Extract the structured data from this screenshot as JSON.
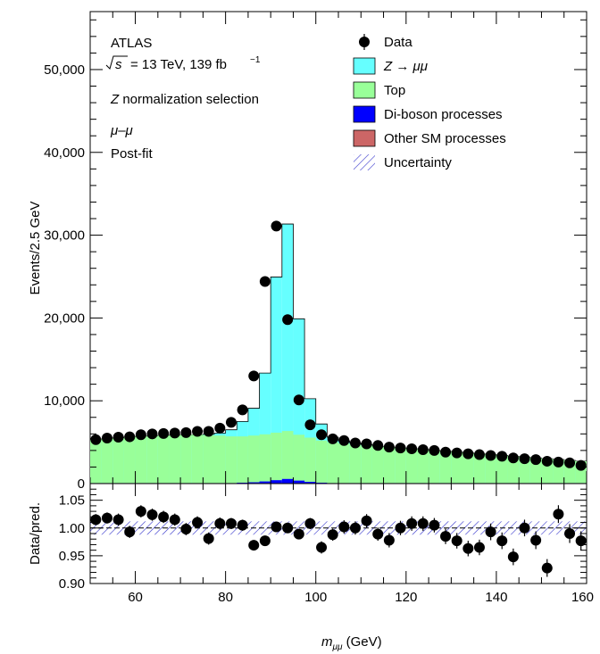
{
  "chart_data": [
    {
      "type": "area",
      "panel": "main",
      "ylabel": "Events/2.5 GeV",
      "xlim": [
        50,
        160
      ],
      "ylim": [
        0,
        57000
      ],
      "yticks": [
        0,
        10000,
        20000,
        30000,
        40000,
        50000
      ],
      "ytick_labels": [
        "0",
        "10,000",
        "20,000",
        "30,000",
        "40,000",
        "50,000"
      ],
      "texts": {
        "experiment": "ATLAS",
        "sqrt_s_label": "= 13 TeV, 139 fb",
        "sqrt_s_sup": "−1",
        "sqrt_symbol": "s",
        "selection_z": "Z",
        "selection_rest": " normalization selection",
        "channel": "μ–μ",
        "fit": "Post-fit"
      },
      "legend": [
        {
          "key": "data",
          "label": "Data",
          "marker": "dot",
          "color": "#000000"
        },
        {
          "key": "z",
          "label": "Z → μμ",
          "marker": "box",
          "color": "#66ffff"
        },
        {
          "key": "top",
          "label": "Top",
          "marker": "box",
          "color": "#99ff99"
        },
        {
          "key": "diboson",
          "label": "Di-boson processes",
          "marker": "box",
          "color": "#0000ff"
        },
        {
          "key": "other",
          "label": "Other SM processes",
          "marker": "box",
          "color": "#cc6666"
        },
        {
          "key": "unc",
          "label": "Uncertainty",
          "marker": "hatch",
          "color": "#3333cc"
        }
      ],
      "bin_edges": [
        50,
        52.5,
        55,
        57.5,
        60,
        62.5,
        65,
        67.5,
        70,
        72.5,
        75,
        77.5,
        80,
        82.5,
        85,
        87.5,
        90,
        92.5,
        95,
        97.5,
        100,
        102.5,
        105,
        107.5,
        110,
        112.5,
        115,
        117.5,
        120,
        122.5,
        125,
        127.5,
        130,
        132.5,
        135,
        137.5,
        140,
        142.5,
        145,
        147.5,
        150,
        152.5,
        155,
        157.5,
        160
      ],
      "series": [
        {
          "name": "Other SM processes",
          "color": "#cc6666",
          "values": [
            60,
            60,
            60,
            60,
            60,
            60,
            60,
            60,
            60,
            60,
            60,
            60,
            60,
            60,
            60,
            60,
            60,
            60,
            60,
            60,
            60,
            60,
            60,
            60,
            60,
            60,
            60,
            60,
            60,
            60,
            60,
            60,
            60,
            60,
            60,
            60,
            60,
            60,
            60,
            60,
            60,
            60,
            60,
            60
          ]
        },
        {
          "name": "Di-boson processes",
          "color": "#0000ff",
          "values": [
            0,
            0,
            0,
            0,
            0,
            0,
            0,
            0,
            0,
            0,
            0,
            0,
            0,
            50,
            100,
            200,
            350,
            500,
            300,
            150,
            50,
            0,
            0,
            0,
            0,
            0,
            0,
            0,
            0,
            0,
            0,
            0,
            0,
            0,
            0,
            0,
            0,
            0,
            0,
            0,
            0,
            0,
            0,
            0
          ]
        },
        {
          "name": "Top",
          "color": "#99ff99",
          "values": [
            5240,
            5340,
            5440,
            5540,
            5640,
            5690,
            5740,
            5790,
            5840,
            5840,
            5790,
            5740,
            5640,
            5590,
            5640,
            5690,
            5740,
            5790,
            5540,
            5340,
            5090,
            4940,
            4790,
            4640,
            4540,
            4440,
            4340,
            4240,
            4140,
            4040,
            3940,
            3840,
            3740,
            3640,
            3540,
            3440,
            3340,
            3240,
            3140,
            3040,
            2940,
            2840,
            2740,
            2640
          ]
        },
        {
          "name": "Z → μμ",
          "color": "#66ffff",
          "values": [
            0,
            0,
            0,
            0,
            0,
            0,
            0,
            0,
            0,
            0,
            100,
            300,
            800,
            1800,
            3300,
            7400,
            18800,
            25000,
            14000,
            4700,
            2000,
            600,
            300,
            200,
            100,
            0,
            0,
            0,
            0,
            0,
            0,
            0,
            0,
            0,
            0,
            0,
            0,
            0,
            0,
            0,
            0,
            0,
            0,
            0
          ]
        }
      ],
      "data_points": {
        "name": "Data",
        "x": [
          51.25,
          53.75,
          56.25,
          58.75,
          61.25,
          63.75,
          66.25,
          68.75,
          71.25,
          73.75,
          76.25,
          78.75,
          81.25,
          83.75,
          86.25,
          88.75,
          91.25,
          93.75,
          96.25,
          98.75,
          101.25,
          103.75,
          106.25,
          108.75,
          111.25,
          113.75,
          116.25,
          118.75,
          121.25,
          123.75,
          126.25,
          128.75,
          131.25,
          133.75,
          136.25,
          138.75,
          141.25,
          143.75,
          146.25,
          148.75,
          151.25,
          153.75,
          156.25,
          158.75
        ],
        "y": [
          5300,
          5500,
          5600,
          5650,
          5900,
          6000,
          6050,
          6100,
          6150,
          6300,
          6300,
          6700,
          7400,
          8900,
          13000,
          24400,
          31100,
          19800,
          10100,
          7100,
          5900,
          5400,
          5200,
          4900,
          4800,
          4600,
          4400,
          4300,
          4200,
          4100,
          4000,
          3800,
          3700,
          3600,
          3500,
          3400,
          3300,
          3100,
          3000,
          2900,
          2700,
          2600,
          2500,
          2200
        ]
      }
    },
    {
      "type": "scatter",
      "panel": "ratio",
      "ylabel": "Data/pred.",
      "xlabel_main": "m",
      "xlabel_sub": "μμ",
      "xlabel_unit": " (GeV)",
      "xlim": [
        50,
        160
      ],
      "ylim": [
        0.9,
        1.08
      ],
      "yticks": [
        0.9,
        0.95,
        1.0,
        1.05
      ],
      "ytick_labels": [
        "0.90",
        "0.95",
        "1.00",
        "1.05"
      ],
      "xticks": [
        60,
        80,
        100,
        120,
        140,
        160
      ],
      "xtick_labels": [
        "60",
        "80",
        "100",
        "120",
        "140",
        "160"
      ],
      "uncertainty_band": [
        0.988,
        1.012
      ],
      "x": [
        51.25,
        53.75,
        56.25,
        58.75,
        61.25,
        63.75,
        66.25,
        68.75,
        71.25,
        73.75,
        76.25,
        78.75,
        81.25,
        83.75,
        86.25,
        88.75,
        91.25,
        93.75,
        96.25,
        98.75,
        101.25,
        103.75,
        106.25,
        108.75,
        111.25,
        113.75,
        116.25,
        118.75,
        121.25,
        123.75,
        126.25,
        128.75,
        131.25,
        133.75,
        136.25,
        138.75,
        141.25,
        143.75,
        146.25,
        148.75,
        151.25,
        153.75,
        156.25,
        158.75
      ],
      "y": [
        1.015,
        1.018,
        1.015,
        0.993,
        1.03,
        1.024,
        1.02,
        1.015,
        0.998,
        1.01,
        0.981,
        1.008,
        1.008,
        1.005,
        0.969,
        0.977,
        1.002,
        1.0,
        0.989,
        1.008,
        0.965,
        0.988,
        1.002,
        1.0,
        1.013,
        0.989,
        0.978,
        1.0,
        1.008,
        1.008,
        1.005,
        0.985,
        0.977,
        0.963,
        0.965,
        0.993,
        0.977,
        0.948,
        1.0,
        0.978,
        0.928,
        1.025,
        0.99,
        0.977
      ],
      "yerr": [
        0.01,
        0.01,
        0.011,
        0.011,
        0.011,
        0.011,
        0.011,
        0.011,
        0.011,
        0.011,
        0.011,
        0.011,
        0.01,
        0.01,
        0.008,
        0.006,
        0.005,
        0.006,
        0.008,
        0.01,
        0.011,
        0.011,
        0.012,
        0.012,
        0.012,
        0.012,
        0.013,
        0.013,
        0.013,
        0.013,
        0.013,
        0.014,
        0.014,
        0.014,
        0.014,
        0.015,
        0.015,
        0.015,
        0.015,
        0.016,
        0.016,
        0.016,
        0.017,
        0.017
      ]
    }
  ]
}
